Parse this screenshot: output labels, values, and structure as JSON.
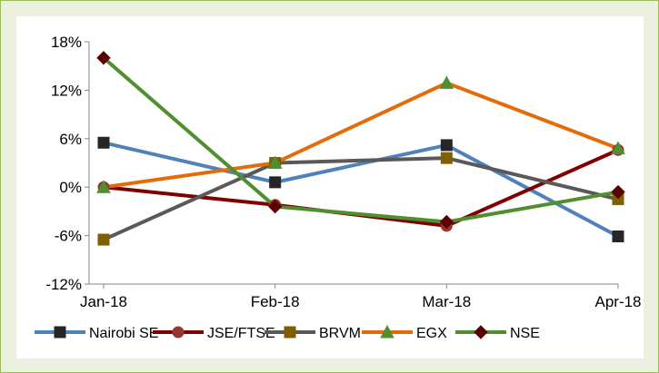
{
  "chart_data": {
    "type": "line",
    "title": "",
    "xlabel": "",
    "ylabel": "",
    "categories": [
      "Jan-18",
      "Feb-18",
      "Mar-18",
      "Apr-18"
    ],
    "y_ticks": [
      "18%",
      "12%",
      "6%",
      "0%",
      "-6%",
      "-12%"
    ],
    "ylim": [
      -12,
      18
    ],
    "y_unit": "%",
    "grid": false,
    "legend_position": "bottom",
    "series": [
      {
        "name": "Nairobi SE",
        "color": "#4f81bd",
        "marker": "square",
        "marker_color": "#262626",
        "values": [
          5.5,
          0.6,
          5.2,
          -6.1
        ]
      },
      {
        "name": "JSE/FTSE",
        "color": "#7f0000",
        "marker": "circle",
        "marker_color": "#943634",
        "values": [
          0.0,
          -2.2,
          -4.8,
          4.6
        ]
      },
      {
        "name": "BRVM",
        "color": "#595959",
        "marker": "square",
        "marker_color": "#7f6000",
        "values": [
          -6.5,
          3.0,
          3.6,
          -1.5
        ]
      },
      {
        "name": "EGX",
        "color": "#e36c09",
        "marker": "triangle",
        "marker_color": "#4f8f30",
        "values": [
          0.0,
          3.0,
          12.9,
          4.8
        ]
      },
      {
        "name": "NSE",
        "color": "#4f8f30",
        "marker": "diamond",
        "marker_color": "#5a0000",
        "values": [
          16.0,
          -2.4,
          -4.3,
          -0.6
        ]
      }
    ]
  }
}
